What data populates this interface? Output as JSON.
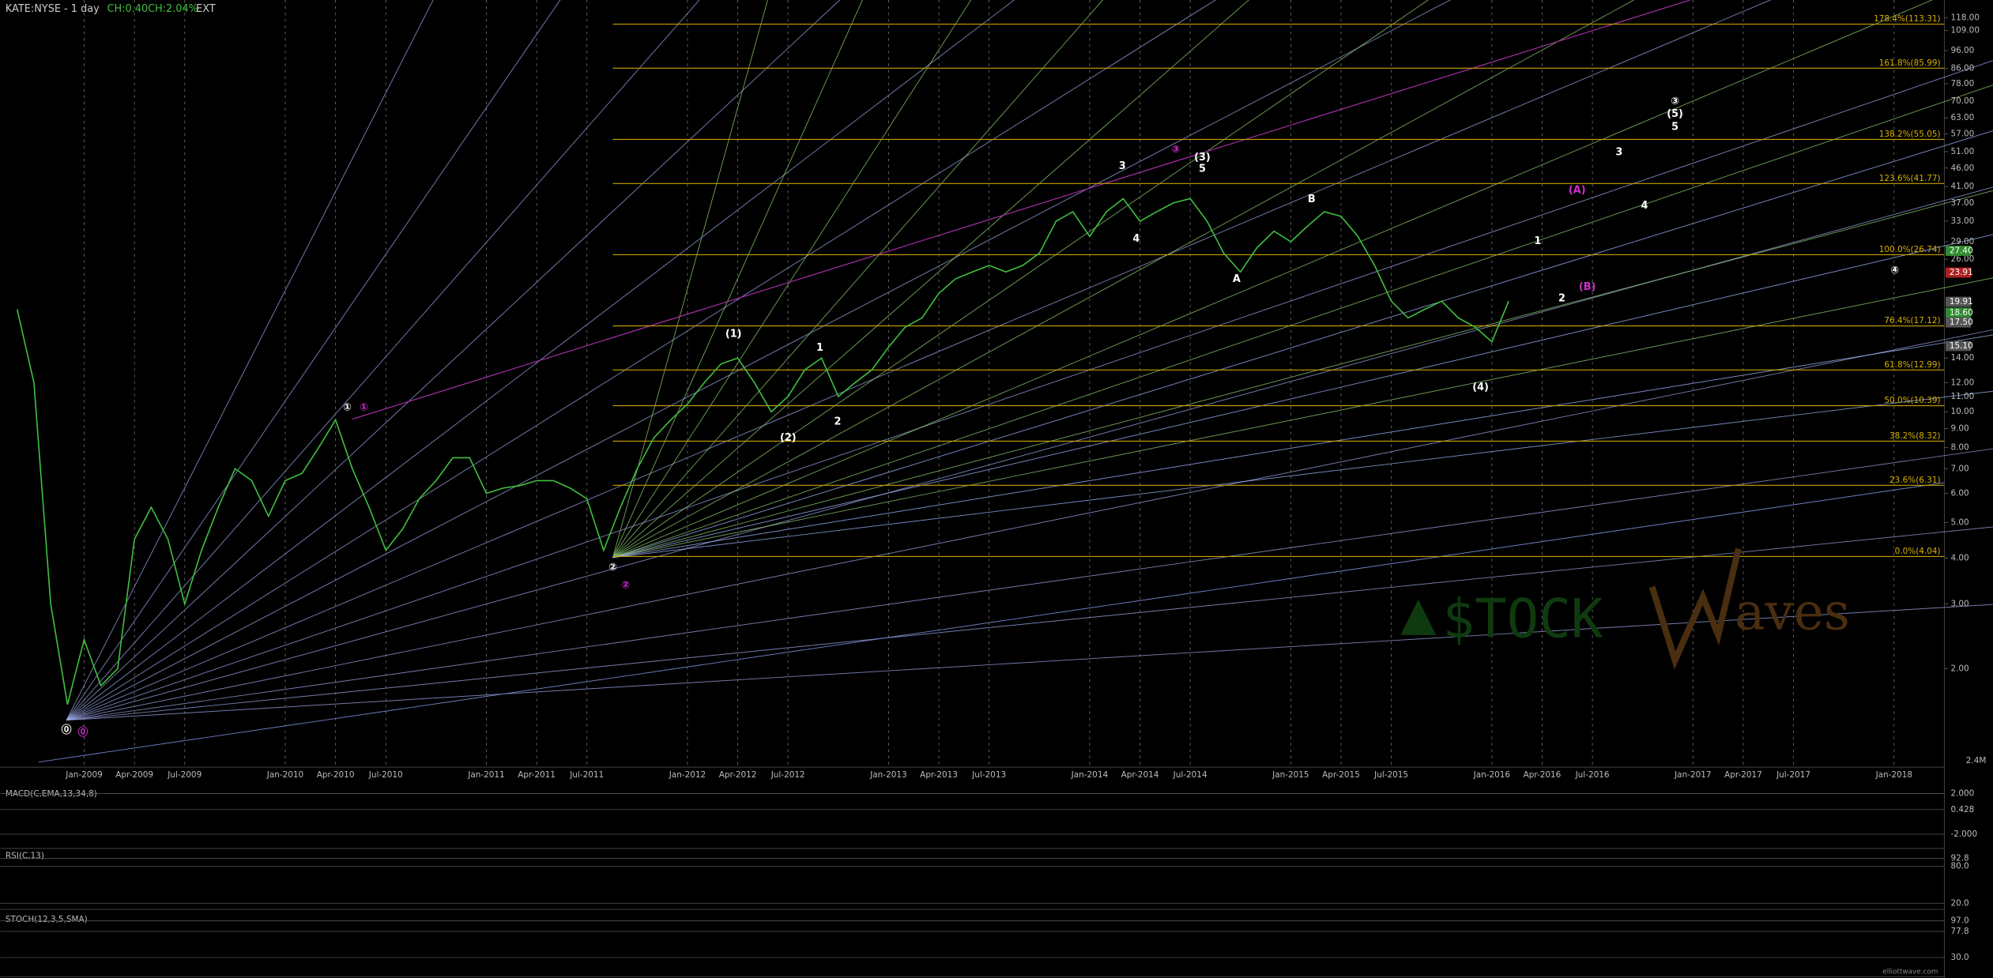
{
  "chart_data": [
    {
      "type": "line",
      "title": "KATE:NYSE - 1 day",
      "change": "CH:0.40",
      "change_pct": "CH:2.04%",
      "session": "EXT",
      "log_scale": true,
      "color": "#3fbf3f",
      "xlim": [
        "2008-08",
        "2018-04"
      ],
      "ylim": [
        1.08,
        131.8
      ],
      "x": [
        "2008-09",
        "2008-10",
        "2008-11",
        "2008-12",
        "2009-01",
        "2009-02",
        "2009-03",
        "2009-04",
        "2009-05",
        "2009-06",
        "2009-07",
        "2009-08",
        "2009-09",
        "2009-10",
        "2009-11",
        "2009-12",
        "2010-01",
        "2010-02",
        "2010-03",
        "2010-04",
        "2010-05",
        "2010-06",
        "2010-07",
        "2010-08",
        "2010-09",
        "2010-10",
        "2010-11",
        "2010-12",
        "2011-01",
        "2011-02",
        "2011-03",
        "2011-04",
        "2011-05",
        "2011-06",
        "2011-07",
        "2011-08",
        "2011-09",
        "2011-10",
        "2011-11",
        "2011-12",
        "2012-01",
        "2012-02",
        "2012-03",
        "2012-04",
        "2012-05",
        "2012-06",
        "2012-07",
        "2012-08",
        "2012-09",
        "2012-10",
        "2012-11",
        "2012-12",
        "2013-01",
        "2013-02",
        "2013-03",
        "2013-04",
        "2013-05",
        "2013-06",
        "2013-07",
        "2013-08",
        "2013-09",
        "2013-10",
        "2013-11",
        "2013-12",
        "2014-01",
        "2014-02",
        "2014-03",
        "2014-04",
        "2014-05",
        "2014-06",
        "2014-07",
        "2014-08",
        "2014-09",
        "2014-10",
        "2014-11",
        "2014-12",
        "2015-01",
        "2015-02",
        "2015-03",
        "2015-04",
        "2015-05",
        "2015-06",
        "2015-07",
        "2015-08",
        "2015-09",
        "2015-10",
        "2015-11",
        "2015-12",
        "2016-01",
        "2016-02"
      ],
      "values": [
        19,
        12,
        3,
        1.6,
        2.4,
        1.8,
        2,
        4.5,
        5.5,
        4.5,
        3,
        4.2,
        5.5,
        7,
        6.5,
        5.2,
        6.5,
        6.8,
        8,
        9.5,
        7,
        5.5,
        4.2,
        4.8,
        5.8,
        6.5,
        7.5,
        7.5,
        6,
        6.2,
        6.3,
        6.5,
        6.5,
        6.2,
        5.8,
        4.2,
        5.5,
        7,
        8.5,
        9.5,
        10.5,
        12,
        13.5,
        14,
        12,
        10,
        11,
        13,
        14,
        11,
        12,
        13,
        15,
        17,
        18,
        21,
        23,
        24,
        25,
        24,
        25,
        27,
        33,
        35,
        30,
        35,
        38,
        33,
        35,
        37,
        38,
        33,
        27,
        24,
        28,
        31,
        29,
        32,
        35,
        34,
        30,
        25,
        20,
        18,
        19,
        20,
        18,
        17,
        15.5,
        20
      ],
      "xticks": [
        {
          "value": "2009-01",
          "label": "Jan-2009"
        },
        {
          "value": "2009-04",
          "label": "Apr-2009"
        },
        {
          "value": "2009-07",
          "label": "Jul-2009"
        },
        {
          "value": "2010-01",
          "label": "Jan-2010"
        },
        {
          "value": "2010-04",
          "label": "Apr-2010"
        },
        {
          "value": "2010-07",
          "label": "Jul-2010"
        },
        {
          "value": "2011-01",
          "label": "Jan-2011"
        },
        {
          "value": "2011-04",
          "label": "Apr-2011"
        },
        {
          "value": "2011-07",
          "label": "Jul-2011"
        },
        {
          "value": "2012-01",
          "label": "Jan-2012"
        },
        {
          "value": "2012-04",
          "label": "Apr-2012"
        },
        {
          "value": "2012-07",
          "label": "Jul-2012"
        },
        {
          "value": "2013-01",
          "label": "Jan-2013"
        },
        {
          "value": "2013-04",
          "label": "Apr-2013"
        },
        {
          "value": "2013-07",
          "label": "Jul-2013"
        },
        {
          "value": "2014-01",
          "label": "Jan-2014"
        },
        {
          "value": "2014-04",
          "label": "Apr-2014"
        },
        {
          "value": "2014-07",
          "label": "Jul-2014"
        },
        {
          "value": "2015-01",
          "label": "Jan-2015"
        },
        {
          "value": "2015-04",
          "label": "Apr-2015"
        },
        {
          "value": "2015-07",
          "label": "Jul-2015"
        },
        {
          "value": "2016-01",
          "label": "Jan-2016"
        },
        {
          "value": "2016-04",
          "label": "Apr-2016"
        },
        {
          "value": "2016-07",
          "label": "Jul-2016"
        },
        {
          "value": "2017-01",
          "label": "Jan-2017"
        },
        {
          "value": "2017-04",
          "label": "Apr-2017"
        },
        {
          "value": "2017-07",
          "label": "Jul-2017"
        },
        {
          "value": "2018-01",
          "label": "Jan-2018"
        }
      ],
      "yticks": [
        {
          "value": 118,
          "label": "118.00"
        },
        {
          "value": 109,
          "label": "109.00"
        },
        {
          "value": 96,
          "label": "96.00"
        },
        {
          "value": 86,
          "label": "86.00"
        },
        {
          "value": 78,
          "label": "78.00"
        },
        {
          "value": 70,
          "label": "70.00"
        },
        {
          "value": 63,
          "label": "63.00"
        },
        {
          "value": 57,
          "label": "57.00"
        },
        {
          "value": 51,
          "label": "51.00"
        },
        {
          "value": 46,
          "label": "46.00"
        },
        {
          "value": 41,
          "label": "41.00"
        },
        {
          "value": 37,
          "label": "37.00"
        },
        {
          "value": 33,
          "label": "33.00"
        },
        {
          "value": 29,
          "label": "29.00"
        },
        {
          "value": 26,
          "label": "26.00"
        },
        {
          "value": 14,
          "label": "14.00"
        },
        {
          "value": 12,
          "label": "12.00"
        },
        {
          "value": 11,
          "label": "11.00"
        },
        {
          "value": 10,
          "label": "10.00"
        },
        {
          "value": 9,
          "label": "9.00"
        },
        {
          "value": 8,
          "label": "8.00"
        },
        {
          "value": 7,
          "label": "7.00"
        },
        {
          "value": 6,
          "label": "6.00"
        },
        {
          "value": 5,
          "label": "5.00"
        },
        {
          "value": 4,
          "label": "4.00"
        },
        {
          "value": 3,
          "label": "3.00"
        },
        {
          "value": 2,
          "label": "2.00"
        }
      ],
      "fib_levels": [
        {
          "value": 113.31,
          "label": "178.4%(113.31)"
        },
        {
          "value": 85.99,
          "label": "161.8%(85.99)"
        },
        {
          "value": 55.05,
          "label": "138.2%(55.05)"
        },
        {
          "value": 41.77,
          "label": "123.6%(41.77)"
        },
        {
          "value": 26.74,
          "label": "100.0%(26.74)"
        },
        {
          "value": 17.12,
          "label": "76.4%(17.12)"
        },
        {
          "value": 12.99,
          "label": "61.8%(12.99)"
        },
        {
          "value": 10.39,
          "label": "50.0%(10.39)"
        },
        {
          "value": 8.32,
          "label": "38.2%(8.32)"
        },
        {
          "value": 6.31,
          "label": "23.6%(6.31)"
        },
        {
          "value": 4.04,
          "label": "0.0%(4.04)"
        }
      ],
      "fib_color": "#c8a000",
      "price_tags": [
        {
          "value": 27.4,
          "label": "27.40",
          "color": "#2e8b2e"
        },
        {
          "value": 23.91,
          "label": "23.91",
          "color": "#b02020"
        },
        {
          "value": 19.91,
          "label": "19.91",
          "color": "#555555"
        },
        {
          "value": 18.6,
          "label": "18.60",
          "color": "#2e8b2e"
        },
        {
          "value": 17.5,
          "label": "17.50",
          "color": "#555555"
        },
        {
          "value": 15.1,
          "label": "15.10",
          "color": "#555555"
        }
      ],
      "wave_labels": [
        "⓪",
        "⓪",
        "①",
        "①",
        "②",
        "②",
        "(1)",
        "1",
        "(2)",
        "2",
        "3",
        "4",
        "③",
        "(3)",
        "5",
        "A",
        "B",
        "(4)",
        "1",
        "2",
        "3",
        "4",
        "(A)",
        "(B)",
        "③",
        "(5)",
        "5",
        "④"
      ],
      "volume_label": "2.4M",
      "watermark": [
        "$TOCK",
        "aves"
      ],
      "source": "elliottwave.com"
    },
    {
      "type": "indicator",
      "title": "MACD(C,EMA,13,34,8)",
      "ylim": [
        -3.4,
        2.6
      ],
      "yticks": [
        {
          "value": 2,
          "label": "2.000"
        },
        0.428,
        {
          "value": -2,
          "label": "-2.000"
        }
      ]
    },
    {
      "type": "indicator",
      "title": "RSI(C,13)",
      "ylim": [
        10,
        107
      ],
      "yticks": [
        92.8,
        {
          "value": 80,
          "label": "80.0"
        },
        {
          "value": 20,
          "label": "20.0"
        }
      ]
    },
    {
      "type": "indicator",
      "title": "STOCH(12,3,5,SMA)",
      "ylim": [
        -5,
        111
      ],
      "yticks": [
        {
          "value": 97,
          "label": "97.0"
        },
        77.8,
        {
          "value": 30,
          "label": "30.0"
        }
      ]
    }
  ]
}
